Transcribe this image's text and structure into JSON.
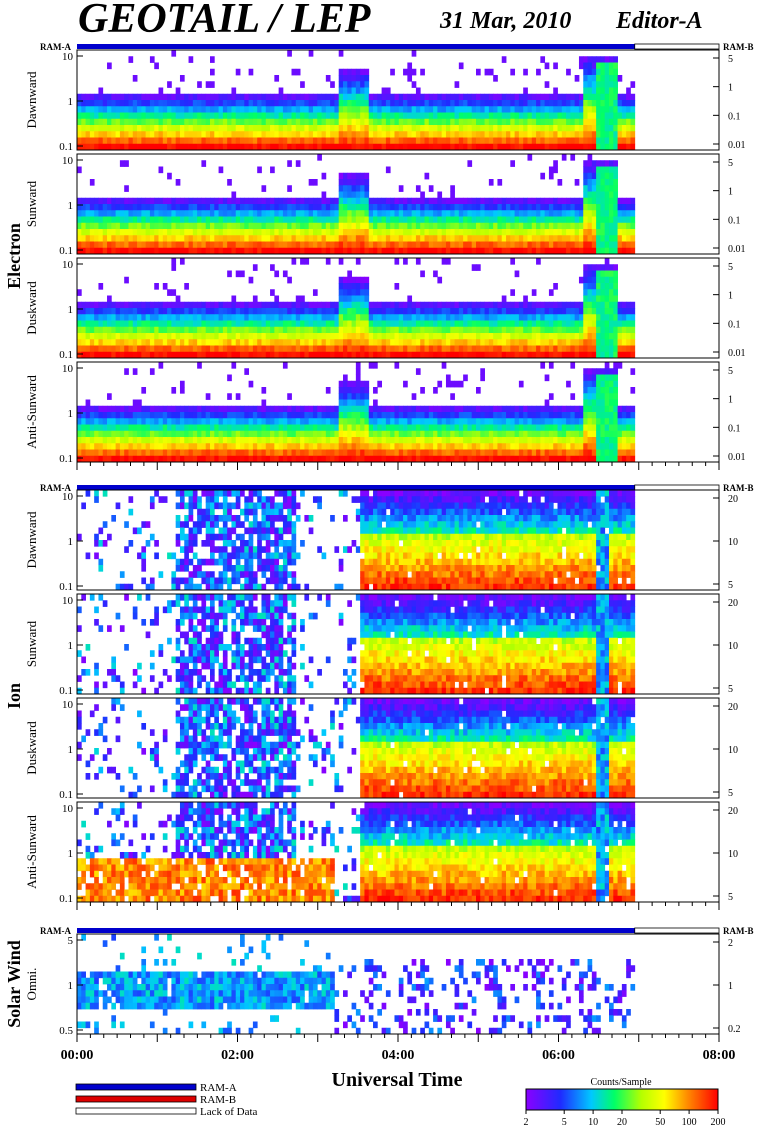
{
  "header": {
    "title": "GEOTAIL / LEP",
    "date": "31 Mar, 2010",
    "editor": "Editor-A"
  },
  "chart_data": {
    "type": "heatmap",
    "sections": [
      {
        "name": "Electron",
        "ram_left": "RAM-A",
        "ram_right": "RAM-B",
        "panels": [
          {
            "label": "Dawnward",
            "y_ticks": [
              "10",
              "1",
              "0.1"
            ],
            "right_ticks": [
              "5",
              "1",
              "0.1",
              "0.01"
            ]
          },
          {
            "label": "Sunward",
            "y_ticks": [
              "10",
              "1",
              "0.1"
            ],
            "right_ticks": [
              "5",
              "1",
              "0.1",
              "0.01"
            ]
          },
          {
            "label": "Duskward",
            "y_ticks": [
              "10",
              "1",
              "0.1"
            ],
            "right_ticks": [
              "5",
              "1",
              "0.1",
              "0.01"
            ]
          },
          {
            "label": "Anti-Sunward",
            "y_ticks": [
              "10",
              "1",
              "0.1"
            ],
            "right_ticks": [
              "5",
              "1",
              "0.1",
              "0.01"
            ]
          }
        ]
      },
      {
        "name": "Ion",
        "ram_left": "RAM-A",
        "ram_right": "RAM-B",
        "panels": [
          {
            "label": "Dawnward",
            "y_ticks": [
              "10",
              "1",
              "0.1"
            ],
            "right_ticks": [
              "20",
              "10",
              "5"
            ]
          },
          {
            "label": "Sunward",
            "y_ticks": [
              "10",
              "1",
              "0.1"
            ],
            "right_ticks": [
              "20",
              "10",
              "5"
            ]
          },
          {
            "label": "Duskward",
            "y_ticks": [
              "10",
              "1",
              "0.1"
            ],
            "right_ticks": [
              "20",
              "10",
              "5"
            ]
          },
          {
            "label": "Anti-Sunward",
            "y_ticks": [
              "10",
              "1",
              "0.1"
            ],
            "right_ticks": [
              "20",
              "10",
              "5"
            ]
          }
        ]
      },
      {
        "name": "Solar Wind",
        "ram_left": "RAM-A",
        "ram_right": "RAM-B",
        "panels": [
          {
            "label": "Omni.",
            "y_ticks": [
              "5",
              "1",
              "0.5"
            ],
            "right_ticks": [
              "2",
              "1",
              "0.2"
            ]
          }
        ]
      }
    ],
    "x_axis": {
      "label": "Universal Time",
      "ticks": [
        "00:00",
        "02:00",
        "04:00",
        "06:00",
        "08:00"
      ],
      "range_hours": [
        0,
        8
      ],
      "data_end_hours": 6.95
    },
    "legend": {
      "items": [
        "RAM-A",
        "RAM-B",
        "Lack of Data"
      ],
      "colors": [
        "#0000cc",
        "#dd0000",
        "#ffffff"
      ]
    },
    "colorbar": {
      "title": "Counts/Sample",
      "ticks": [
        "2",
        "5",
        "10",
        "20",
        "50",
        "100",
        "200"
      ],
      "range": [
        2,
        200
      ],
      "scale": "log"
    }
  }
}
